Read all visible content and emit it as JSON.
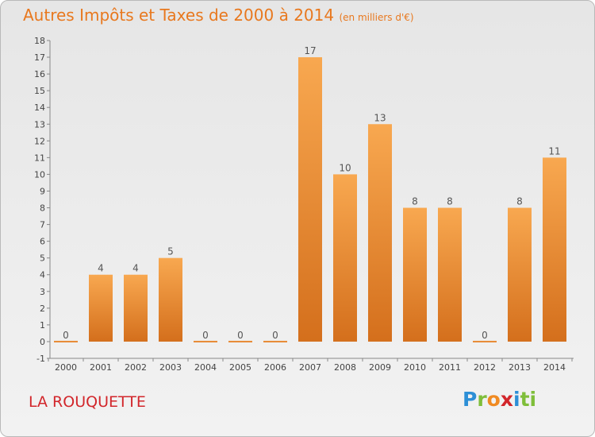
{
  "header": {
    "title": "Autres Impôts et Taxes de 2000 à 2014",
    "unit": "(en milliers d'€)"
  },
  "footer": {
    "city": "LA ROUQUETTE",
    "logo": [
      "P",
      "r",
      "o",
      "x",
      "i",
      "ti"
    ]
  },
  "colors": {
    "bar_light": "#f8a850",
    "bar_dark": "#d46f1c",
    "title": "#e8781e",
    "city": "#d2262b"
  },
  "chart_data": {
    "type": "bar",
    "title": "Autres Impôts et Taxes de 2000 à 2014",
    "categories": [
      "2000",
      "2001",
      "2002",
      "2003",
      "2004",
      "2005",
      "2006",
      "2007",
      "2008",
      "2009",
      "2010",
      "2011",
      "2012",
      "2013",
      "2014"
    ],
    "values": [
      0,
      4,
      4,
      5,
      0,
      0,
      0,
      17,
      10,
      13,
      8,
      8,
      0,
      8,
      11
    ],
    "data_labels": [
      "0",
      "4",
      "4",
      "5",
      "0",
      "0",
      "0",
      "17",
      "10",
      "13",
      "8",
      "8",
      "0",
      "8",
      "11"
    ],
    "ylim": [
      -1,
      18
    ],
    "yticks": [
      -1,
      0,
      1,
      2,
      3,
      4,
      5,
      6,
      7,
      8,
      9,
      10,
      11,
      12,
      13,
      14,
      15,
      16,
      17,
      18
    ],
    "xlabel": "",
    "ylabel": "",
    "grid": false,
    "legend": "none"
  }
}
